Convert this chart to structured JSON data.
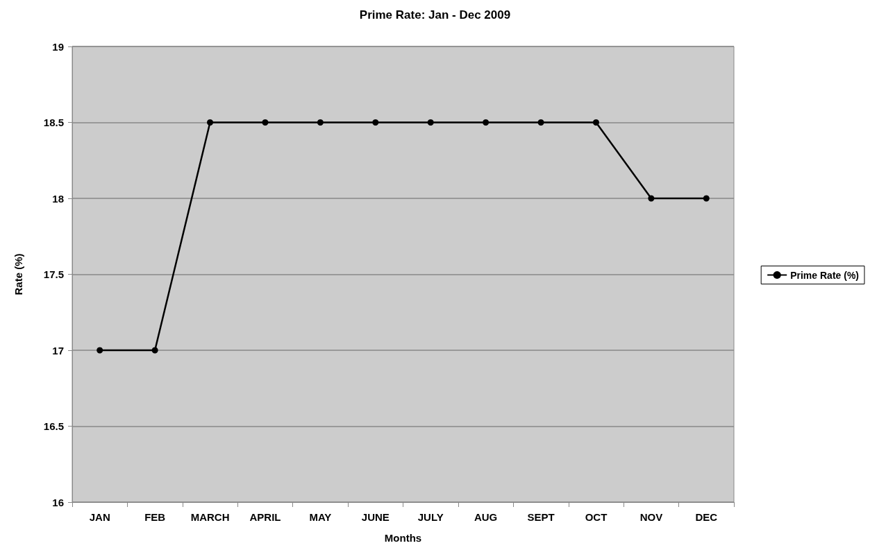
{
  "chart_data": {
    "type": "line",
    "title": "Prime Rate: Jan - Dec 2009",
    "xlabel": "Months",
    "ylabel": "Rate (%)",
    "categories": [
      "JAN",
      "FEB",
      "MARCH",
      "APRIL",
      "MAY",
      "JUNE",
      "JULY",
      "AUG",
      "SEPT",
      "OCT",
      "NOV",
      "DEC"
    ],
    "series": [
      {
        "name": "Prime Rate (%)",
        "color": "#000000",
        "values": [
          17,
          17,
          18.5,
          18.5,
          18.5,
          18.5,
          18.5,
          18.5,
          18.5,
          18.5,
          18,
          18
        ]
      }
    ],
    "ylim": [
      16,
      19
    ],
    "yticks": [
      16,
      16.5,
      17,
      17.5,
      18,
      18.5,
      19
    ],
    "grid": "y",
    "legend": "right",
    "marker": "circle",
    "line_style": "solid"
  }
}
